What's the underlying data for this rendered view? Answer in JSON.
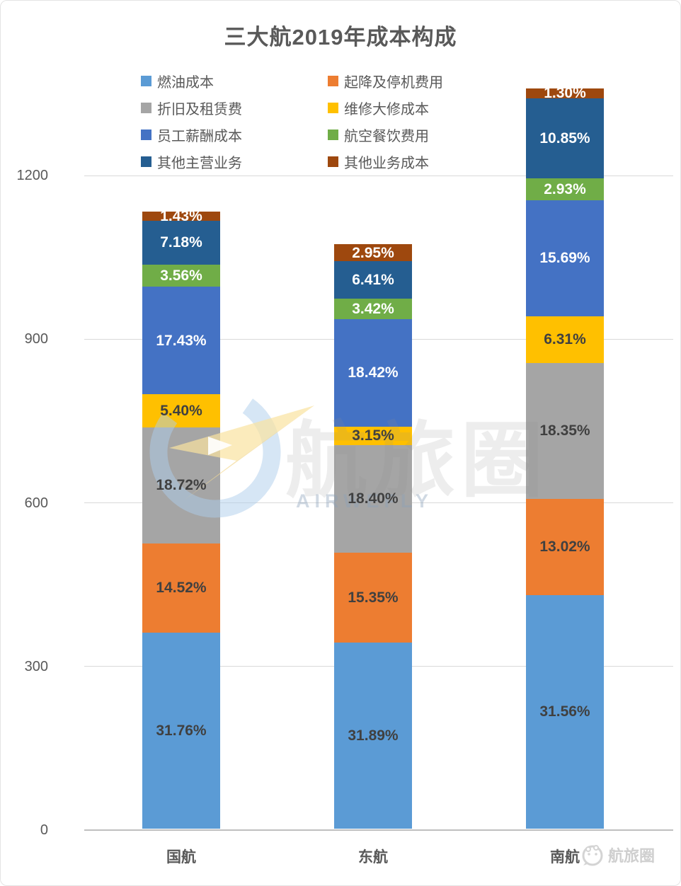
{
  "chart_data": {
    "type": "bar",
    "stacked": true,
    "title": "三大航2019年成本构成",
    "categories": [
      "国航",
      "东航",
      "南航"
    ],
    "series": [
      {
        "name": "燃油成本",
        "color": "#5B9BD5",
        "label_style": "dark",
        "values": [
          31.76,
          31.89,
          31.56
        ]
      },
      {
        "name": "起降及停机费用",
        "color": "#ED7D31",
        "label_style": "dark",
        "values": [
          14.52,
          15.35,
          13.02
        ]
      },
      {
        "name": "折旧及租赁费",
        "color": "#A5A5A5",
        "label_style": "dark",
        "values": [
          18.72,
          18.4,
          18.35
        ]
      },
      {
        "name": "维修大修成本",
        "color": "#FFC000",
        "label_style": "dark",
        "values": [
          5.4,
          3.15,
          6.31
        ]
      },
      {
        "name": "员工薪酬成本",
        "color": "#4472C4",
        "label_style": "white",
        "values": [
          17.43,
          18.42,
          15.69
        ]
      },
      {
        "name": "航空餐饮费用",
        "color": "#70AD47",
        "label_style": "white",
        "values": [
          3.56,
          3.42,
          2.93
        ]
      },
      {
        "name": "其他主营业务",
        "color": "#255E91",
        "label_style": "white",
        "values": [
          7.18,
          6.41,
          10.85
        ]
      },
      {
        "name": "其他业务成本",
        "color": "#9E480E",
        "label_style": "white",
        "values": [
          1.43,
          2.95,
          1.3
        ]
      }
    ],
    "value_format": "percent_2dp",
    "y_axis": {
      "ticks": [
        0,
        300,
        600,
        900,
        1200
      ],
      "max_estimate": 1400
    },
    "bar_totals_estimate": [
      1131,
      1072,
      1357
    ],
    "legend_position": "top",
    "grid": true,
    "label_colors": {
      "dark": "#404040",
      "white": "#FFFFFF"
    }
  },
  "watermark": {
    "center_text": "航旅圈",
    "center_subtext": "AIRWEFLY",
    "footer_text": "航旅圈"
  }
}
